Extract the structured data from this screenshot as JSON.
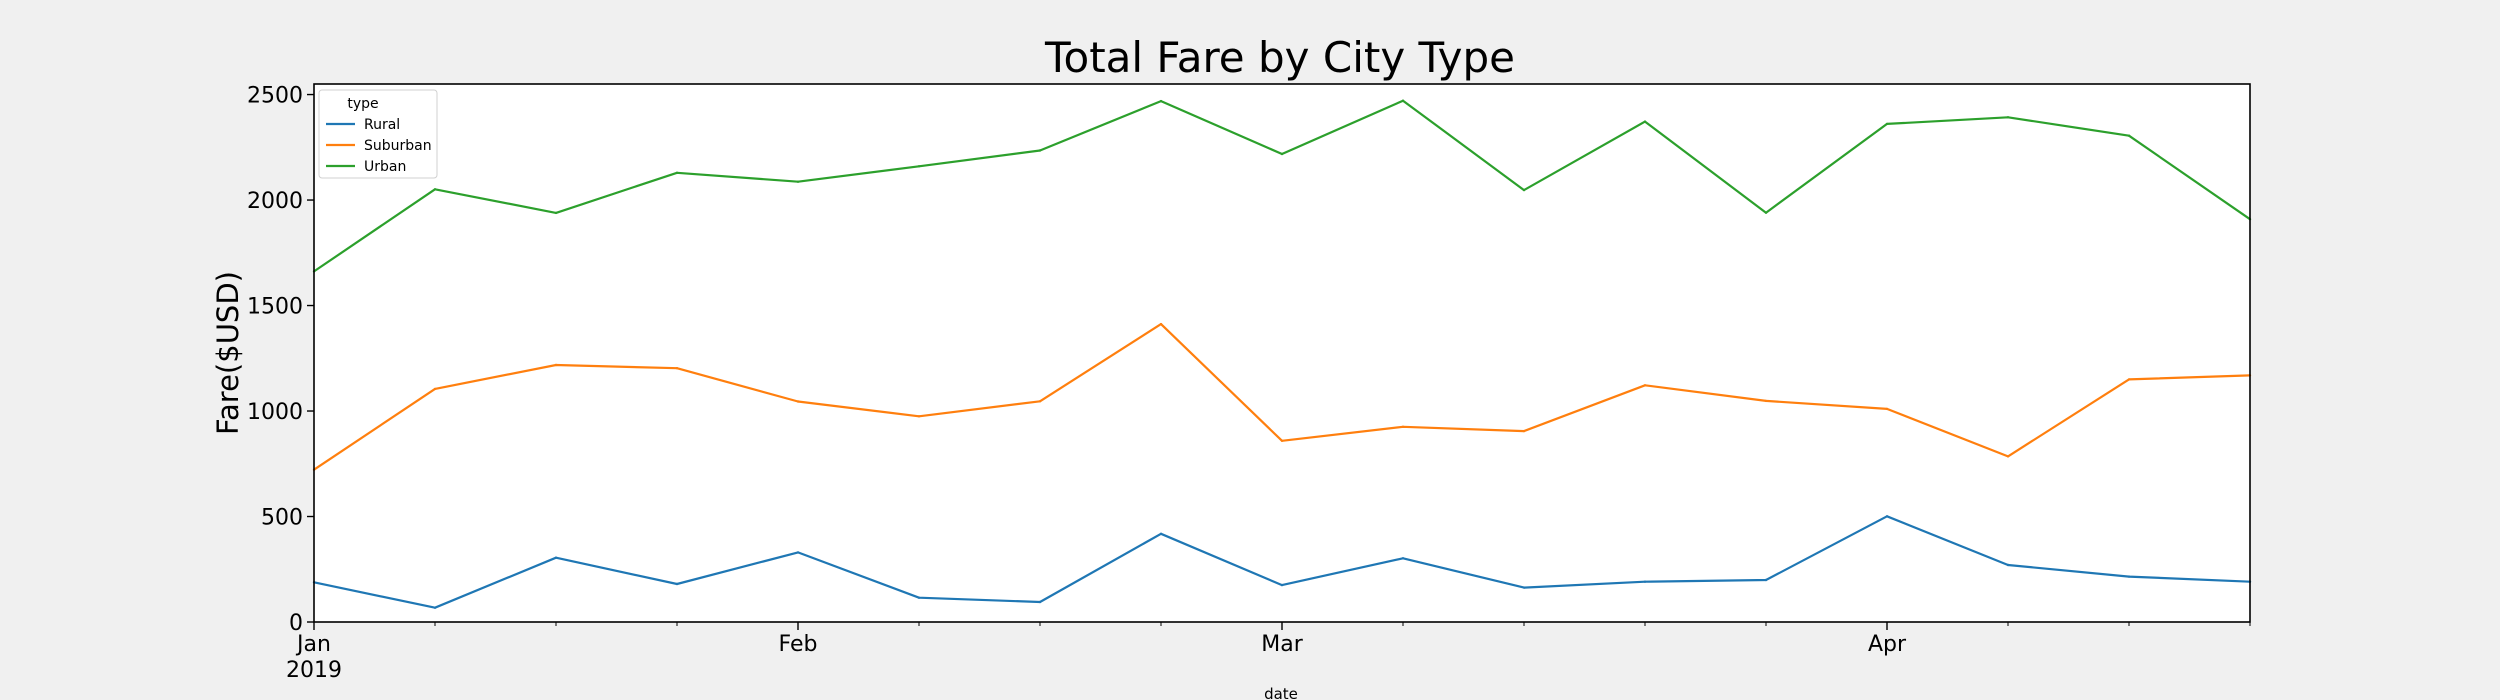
{
  "chart_data": {
    "type": "line",
    "title": "Total Fare by City Type",
    "xlabel": "date",
    "ylabel": "Fare($USD)",
    "x": [
      "2019-01-06",
      "2019-01-13",
      "2019-01-20",
      "2019-01-27",
      "2019-02-03",
      "2019-02-10",
      "2019-02-17",
      "2019-02-24",
      "2019-03-03",
      "2019-03-10",
      "2019-03-17",
      "2019-03-24",
      "2019-03-31",
      "2019-04-07",
      "2019-04-14",
      "2019-04-21",
      "2019-04-28"
    ],
    "xlim": [
      "2019-01-06",
      "2019-04-28"
    ],
    "ylim": [
      0,
      2550
    ],
    "x_ticks": [
      {
        "date": "2019-01-06",
        "label": "Jan",
        "sublabel": "2019"
      },
      {
        "date": "2019-02-03",
        "label": "Feb"
      },
      {
        "date": "2019-03-03",
        "label": "Mar"
      },
      {
        "date": "2019-04-07",
        "label": "Apr"
      }
    ],
    "y_ticks": [
      0,
      500,
      1000,
      1500,
      2000,
      2500
    ],
    "legend": {
      "title": "type",
      "position": "upper-left"
    },
    "grid": false,
    "series": [
      {
        "name": "Rural",
        "color": "#1f77b4",
        "values": [
          188,
          68,
          305,
          180,
          330,
          115,
          95,
          418,
          175,
          302,
          163,
          191,
          199,
          501,
          270,
          215,
          191
        ]
      },
      {
        "name": "Suburban",
        "color": "#ff7f0e",
        "values": [
          722,
          1105,
          1218,
          1203,
          1045,
          975,
          1046,
          1412,
          859,
          925,
          905,
          1122,
          1048,
          1010,
          785,
          1150,
          1169
        ]
      },
      {
        "name": "Urban",
        "color": "#2ca02c",
        "values": [
          1662,
          2051,
          1939,
          2129,
          2087,
          2160,
          2235,
          2469,
          2218,
          2471,
          2047,
          2372,
          1940,
          2361,
          2392,
          2305,
          1909
        ]
      }
    ]
  }
}
